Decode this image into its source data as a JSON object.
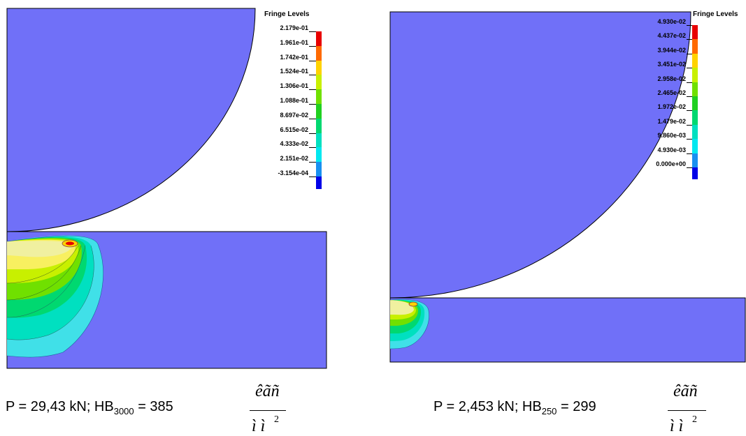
{
  "left": {
    "legend_title": "Fringe Levels",
    "levels": [
      "2.179e-01",
      "1.961e-01",
      "1.742e-01",
      "1.524e-01",
      "1.306e-01",
      "1.088e-01",
      "8.697e-02",
      "6.515e-02",
      "4.333e-02",
      "2.151e-02",
      "-3.154e-04"
    ],
    "caption_prefix": "P = 29,43 kN; HB",
    "caption_sub": "3000",
    "caption_suffix": " = 385",
    "unit_num": "êãñ",
    "unit_den": "ì ì",
    "unit_exp": "2"
  },
  "right": {
    "legend_title": "Fringe Levels",
    "levels": [
      "4.930e-02",
      "4.437e-02",
      "3.944e-02",
      "3.451e-02",
      "2.958e-02",
      "2.465e-02",
      "1.972e-02",
      "1.479e-02",
      "9.860e-03",
      "4.930e-03",
      "0.000e+00"
    ],
    "caption_prefix": "P = 2,453 kN; HB",
    "caption_sub": "250",
    "caption_suffix": " = 299",
    "unit_num": "êãñ",
    "unit_den": "ì ì",
    "unit_exp": "2"
  },
  "colors": {
    "background_blue": "#7070F8",
    "outline": "#000000",
    "fringe": [
      "#E80000",
      "#FF6A00",
      "#FFD200",
      "#C8F000",
      "#70E000",
      "#20D020",
      "#00D870",
      "#00E0C0",
      "#00E8F0",
      "#1890F0",
      "#0000E8"
    ]
  }
}
